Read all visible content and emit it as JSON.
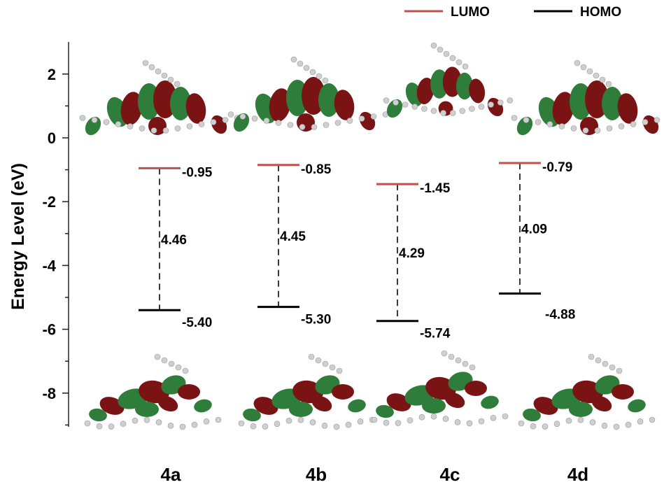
{
  "chart_data": {
    "type": "energy-level diagram",
    "ylabel": "Energy Level (eV)",
    "ylim": [
      -9.1,
      3
    ],
    "yticks": [
      2,
      0,
      -2,
      -4,
      -6,
      -8
    ],
    "categories": [
      "4a",
      "4b",
      "4c",
      "4d"
    ],
    "series": [
      {
        "name": "LUMO",
        "color": "#c0504d",
        "values": [
          -0.95,
          -0.85,
          -1.45,
          -0.79
        ]
      },
      {
        "name": "HOMO",
        "color": "#000000",
        "values": [
          -5.4,
          -5.3,
          -5.74,
          -4.88
        ]
      }
    ],
    "lumo_labels": [
      "-0.95",
      "-0.85",
      "-1.45",
      "-0.79"
    ],
    "homo_labels": [
      "-5.40",
      "-5.30",
      "-5.74",
      "-4.88"
    ],
    "gaps": [
      4.46,
      4.45,
      4.29,
      4.09
    ],
    "gap_labels": [
      "4.46",
      "4.45",
      "4.29",
      "4.09"
    ],
    "legend": {
      "position": "top-right",
      "entries": [
        "LUMO",
        "HOMO"
      ]
    },
    "orbital_colors": {
      "positive": "#7a1414",
      "negative": "#2f7d3a",
      "atom": "#cfcfcf"
    }
  }
}
